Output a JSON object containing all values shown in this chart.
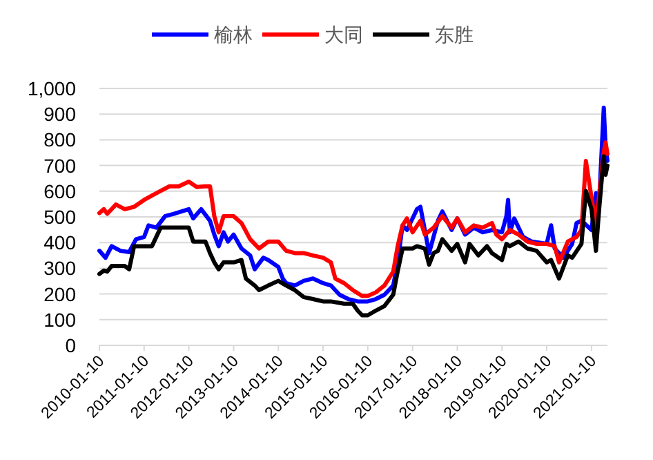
{
  "chart_data": {
    "type": "line",
    "legend": "top",
    "grid": "y",
    "marker": "none",
    "line_style": "solid",
    "xlim": [
      "2010-01-10",
      "2021-05-20"
    ],
    "xticks": [
      "2010-01-10",
      "2011-01-10",
      "2012-01-10",
      "2013-01-10",
      "2014-01-10",
      "2015-01-10",
      "2016-01-10",
      "2017-01-10",
      "2018-01-10",
      "2019-01-10",
      "2020-01-10",
      "2021-01-10"
    ],
    "ylim": [
      0,
      1000
    ],
    "yticks": [
      0,
      100,
      200,
      300,
      400,
      500,
      600,
      700,
      800,
      900,
      {
        "value": 1000,
        "label": "1,000"
      }
    ],
    "series": [
      {
        "name": "榆林",
        "color": "#0000ff",
        "x": [
          "2010-01-10",
          "2010-03-01",
          "2010-04-20",
          "2010-07-01",
          "2010-09-10",
          "2010-11-05",
          "2011-01-10",
          "2011-02-15",
          "2011-04-20",
          "2011-07-01",
          "2011-09-10",
          "2012-01-10",
          "2012-02-15",
          "2012-04-20",
          "2012-07-01",
          "2012-08-05",
          "2012-09-10",
          "2012-10-20",
          "2012-11-25",
          "2013-01-10",
          "2013-03-15",
          "2013-05-25",
          "2013-07-01",
          "2013-09-10",
          "2013-10-20",
          "2014-01-10",
          "2014-02-15",
          "2014-03-15",
          "2014-05-25",
          "2014-08-05",
          "2014-10-20",
          "2015-01-10",
          "2015-03-15",
          "2015-05-25",
          "2015-08-05",
          "2015-10-20",
          "2016-01-10",
          "2016-03-15",
          "2016-05-25",
          "2016-08-05",
          "2016-09-10",
          "2016-10-20",
          "2016-11-25",
          "2017-01-10",
          "2017-02-15",
          "2017-03-15",
          "2017-04-20",
          "2017-05-25",
          "2017-08-05",
          "2017-09-10",
          "2017-11-25",
          "2018-01-10",
          "2018-03-15",
          "2018-05-25",
          "2018-08-05",
          "2018-10-20",
          "2019-01-10",
          "2019-02-15",
          "2019-03-01",
          "2019-03-15",
          "2019-04-20",
          "2019-07-01",
          "2019-09-10",
          "2020-01-10",
          "2020-02-15",
          "2020-03-15",
          "2020-05-25",
          "2020-08-05",
          "2020-09-10",
          "2020-10-20",
          "2021-01-10",
          "2021-02-15",
          "2021-03-15",
          "2021-04-20",
          "2021-05-05",
          "2021-05-20"
        ],
        "values": [
          368,
          341,
          386,
          368,
          363,
          413,
          422,
          467,
          458,
          503,
          512,
          530,
          494,
          530,
          485,
          431,
          386,
          440,
          404,
          431,
          377,
          350,
          296,
          341,
          332,
          305,
          260,
          242,
          233,
          251,
          260,
          242,
          233,
          197,
          180,
          171,
          171,
          180,
          197,
          233,
          323,
          467,
          449,
          494,
          530,
          539,
          449,
          359,
          485,
          521,
          449,
          494,
          431,
          458,
          440,
          449,
          440,
          503,
          566,
          440,
          494,
          422,
          404,
          395,
          467,
          377,
          341,
          395,
          476,
          485,
          449,
          592,
          574,
          925,
          772,
          718
        ]
      },
      {
        "name": "大同",
        "color": "#ff0000",
        "x": [
          "2010-01-10",
          "2010-02-15",
          "2010-03-15",
          "2010-05-25",
          "2010-08-05",
          "2010-10-20",
          "2011-01-10",
          "2011-03-15",
          "2011-05-25",
          "2011-08-05",
          "2011-10-20",
          "2012-01-10",
          "2012-03-15",
          "2012-05-25",
          "2012-07-01",
          "2012-08-05",
          "2012-09-10",
          "2012-10-20",
          "2013-01-10",
          "2013-03-15",
          "2013-05-25",
          "2013-08-05",
          "2013-10-20",
          "2014-01-10",
          "2014-03-15",
          "2014-05-25",
          "2014-08-05",
          "2014-10-20",
          "2015-01-10",
          "2015-03-15",
          "2015-04-20",
          "2015-07-01",
          "2015-09-10",
          "2015-11-25",
          "2016-01-10",
          "2016-03-15",
          "2016-05-25",
          "2016-08-05",
          "2016-09-10",
          "2016-10-20",
          "2016-11-25",
          "2017-01-10",
          "2017-03-15",
          "2017-04-20",
          "2017-07-01",
          "2017-09-10",
          "2017-11-25",
          "2018-01-10",
          "2018-03-15",
          "2018-05-25",
          "2018-08-05",
          "2018-10-20",
          "2018-11-25",
          "2019-01-10",
          "2019-03-15",
          "2019-05-25",
          "2019-08-05",
          "2019-10-20",
          "2020-01-10",
          "2020-03-15",
          "2020-04-20",
          "2020-07-01",
          "2020-09-10",
          "2020-10-20",
          "2020-11-25",
          "2021-01-10",
          "2021-02-15",
          "2021-03-15",
          "2021-04-20",
          "2021-05-05",
          "2021-05-20"
        ],
        "values": [
          515,
          530,
          512,
          548,
          530,
          539,
          566,
          583,
          601,
          619,
          619,
          637,
          616,
          619,
          619,
          503,
          440,
          503,
          503,
          476,
          413,
          377,
          404,
          404,
          368,
          359,
          359,
          350,
          341,
          323,
          260,
          242,
          215,
          192,
          192,
          206,
          233,
          287,
          386,
          467,
          494,
          440,
          485,
          431,
          458,
          503,
          458,
          494,
          440,
          467,
          458,
          476,
          431,
          413,
          449,
          431,
          404,
          395,
          395,
          386,
          323,
          404,
          422,
          449,
          718,
          574,
          467,
          592,
          754,
          790,
          745
        ]
      },
      {
        "name": "东胜",
        "color": "#000000",
        "x": [
          "2010-01-10",
          "2010-02-15",
          "2010-03-15",
          "2010-04-20",
          "2010-08-05",
          "2010-09-10",
          "2010-10-20",
          "2011-03-15",
          "2011-05-25",
          "2011-08-05",
          "2012-01-10",
          "2012-02-15",
          "2012-05-25",
          "2012-07-01",
          "2012-08-05",
          "2012-09-10",
          "2012-10-20",
          "2013-01-10",
          "2013-03-15",
          "2013-04-20",
          "2013-07-01",
          "2013-08-05",
          "2013-10-20",
          "2014-01-10",
          "2014-03-15",
          "2014-05-25",
          "2014-08-05",
          "2014-10-20",
          "2015-01-10",
          "2015-03-15",
          "2015-07-01",
          "2015-09-10",
          "2015-10-20",
          "2015-11-25",
          "2016-01-10",
          "2016-03-15",
          "2016-05-25",
          "2016-08-05",
          "2016-09-10",
          "2016-10-20",
          "2017-01-10",
          "2017-02-15",
          "2017-04-20",
          "2017-05-25",
          "2017-07-01",
          "2017-08-05",
          "2017-09-10",
          "2017-11-25",
          "2018-01-10",
          "2018-03-15",
          "2018-04-20",
          "2018-07-01",
          "2018-09-10",
          "2018-10-20",
          "2019-01-10",
          "2019-02-15",
          "2019-03-15",
          "2019-05-25",
          "2019-08-05",
          "2019-10-20",
          "2020-01-10",
          "2020-02-15",
          "2020-04-20",
          "2020-07-01",
          "2020-08-05",
          "2020-10-20",
          "2020-11-25",
          "2021-01-10",
          "2021-02-15",
          "2021-03-15",
          "2021-04-20",
          "2021-05-05",
          "2021-05-20"
        ],
        "values": [
          278,
          291,
          287,
          309,
          309,
          296,
          386,
          386,
          458,
          458,
          458,
          404,
          404,
          359,
          323,
          296,
          323,
          323,
          332,
          260,
          233,
          215,
          233,
          251,
          233,
          215,
          188,
          180,
          171,
          171,
          162,
          162,
          135,
          117,
          117,
          135,
          153,
          197,
          287,
          377,
          377,
          386,
          377,
          314,
          359,
          368,
          413,
          368,
          395,
          323,
          395,
          350,
          386,
          359,
          332,
          395,
          386,
          404,
          377,
          368,
          323,
          332,
          260,
          350,
          341,
          395,
          601,
          530,
          368,
          539,
          736,
          664,
          700
        ]
      }
    ]
  }
}
